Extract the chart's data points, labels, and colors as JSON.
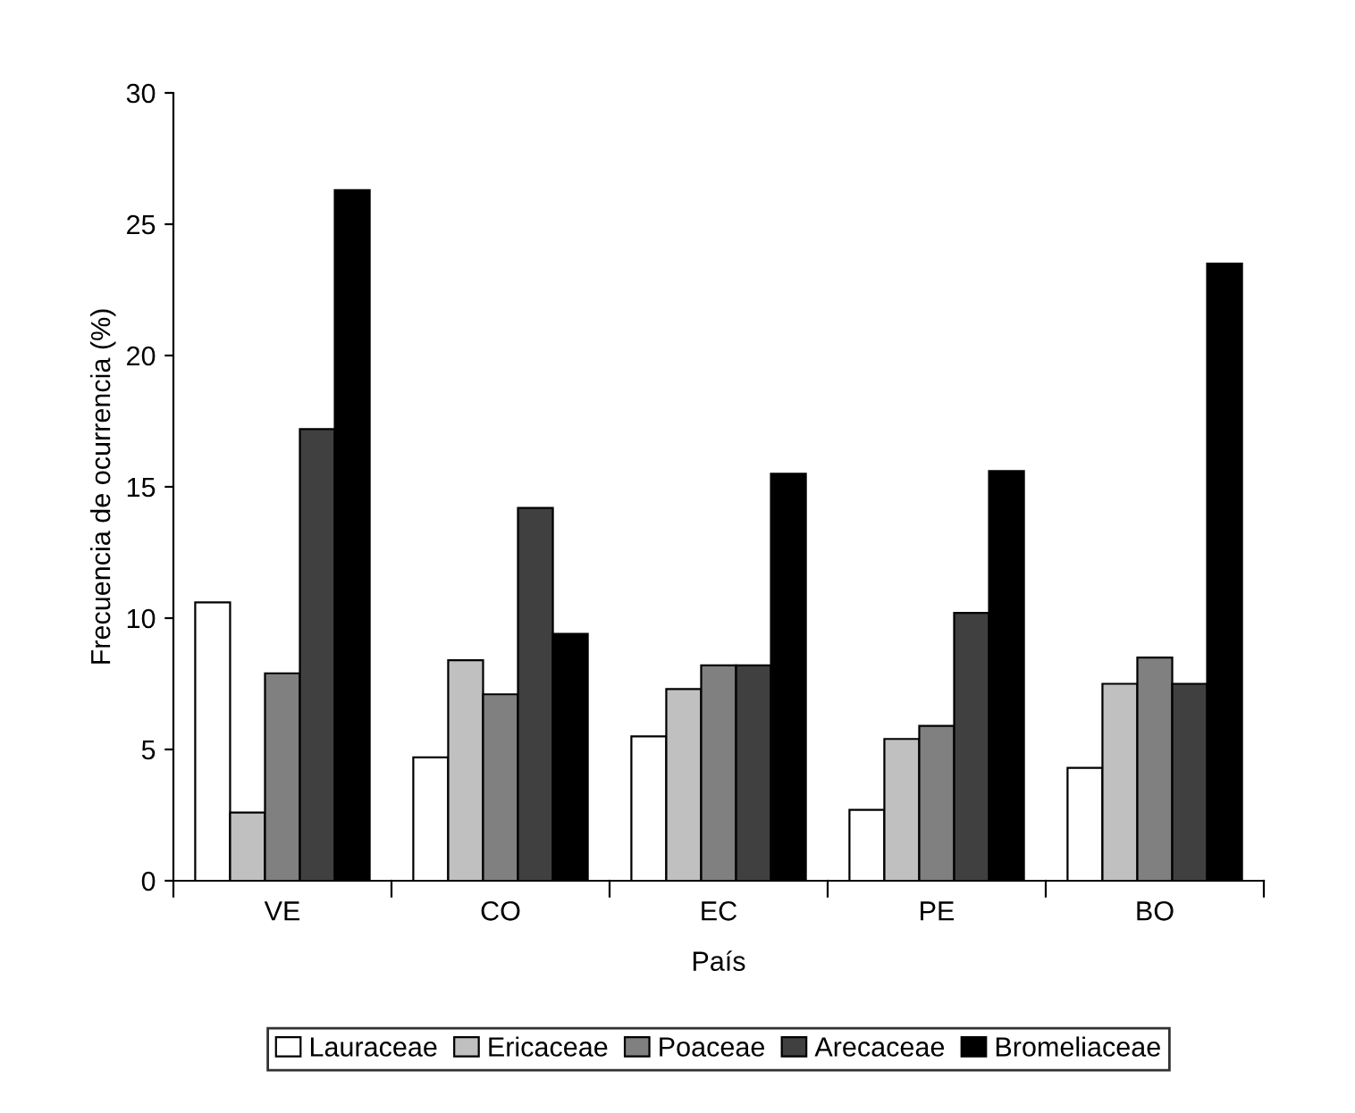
{
  "chart_data": {
    "type": "bar",
    "xlabel": "País",
    "ylabel": "Frecuencia de ocurrencia (%)",
    "categories": [
      "VE",
      "CO",
      "EC",
      "PE",
      "BO"
    ],
    "series": [
      {
        "name": "Lauraceae",
        "color": "#ffffff",
        "values": [
          10.6,
          4.7,
          5.5,
          2.7,
          4.3
        ]
      },
      {
        "name": "Ericaceae",
        "color": "#c0c0c0",
        "values": [
          2.6,
          8.4,
          7.3,
          5.4,
          7.5
        ]
      },
      {
        "name": "Poaceae",
        "color": "#808080",
        "values": [
          7.9,
          7.1,
          8.2,
          5.9,
          8.5
        ]
      },
      {
        "name": "Arecaceae",
        "color": "#404040",
        "values": [
          17.2,
          14.2,
          8.2,
          10.2,
          7.5
        ]
      },
      {
        "name": "Bromeliaceae",
        "color": "#000000",
        "values": [
          26.3,
          9.4,
          15.5,
          15.6,
          23.5
        ]
      }
    ],
    "ylim": [
      0,
      30
    ],
    "yticks": [
      0,
      5,
      10,
      15,
      20,
      25,
      30
    ],
    "grid": false,
    "legend": "bottom"
  }
}
